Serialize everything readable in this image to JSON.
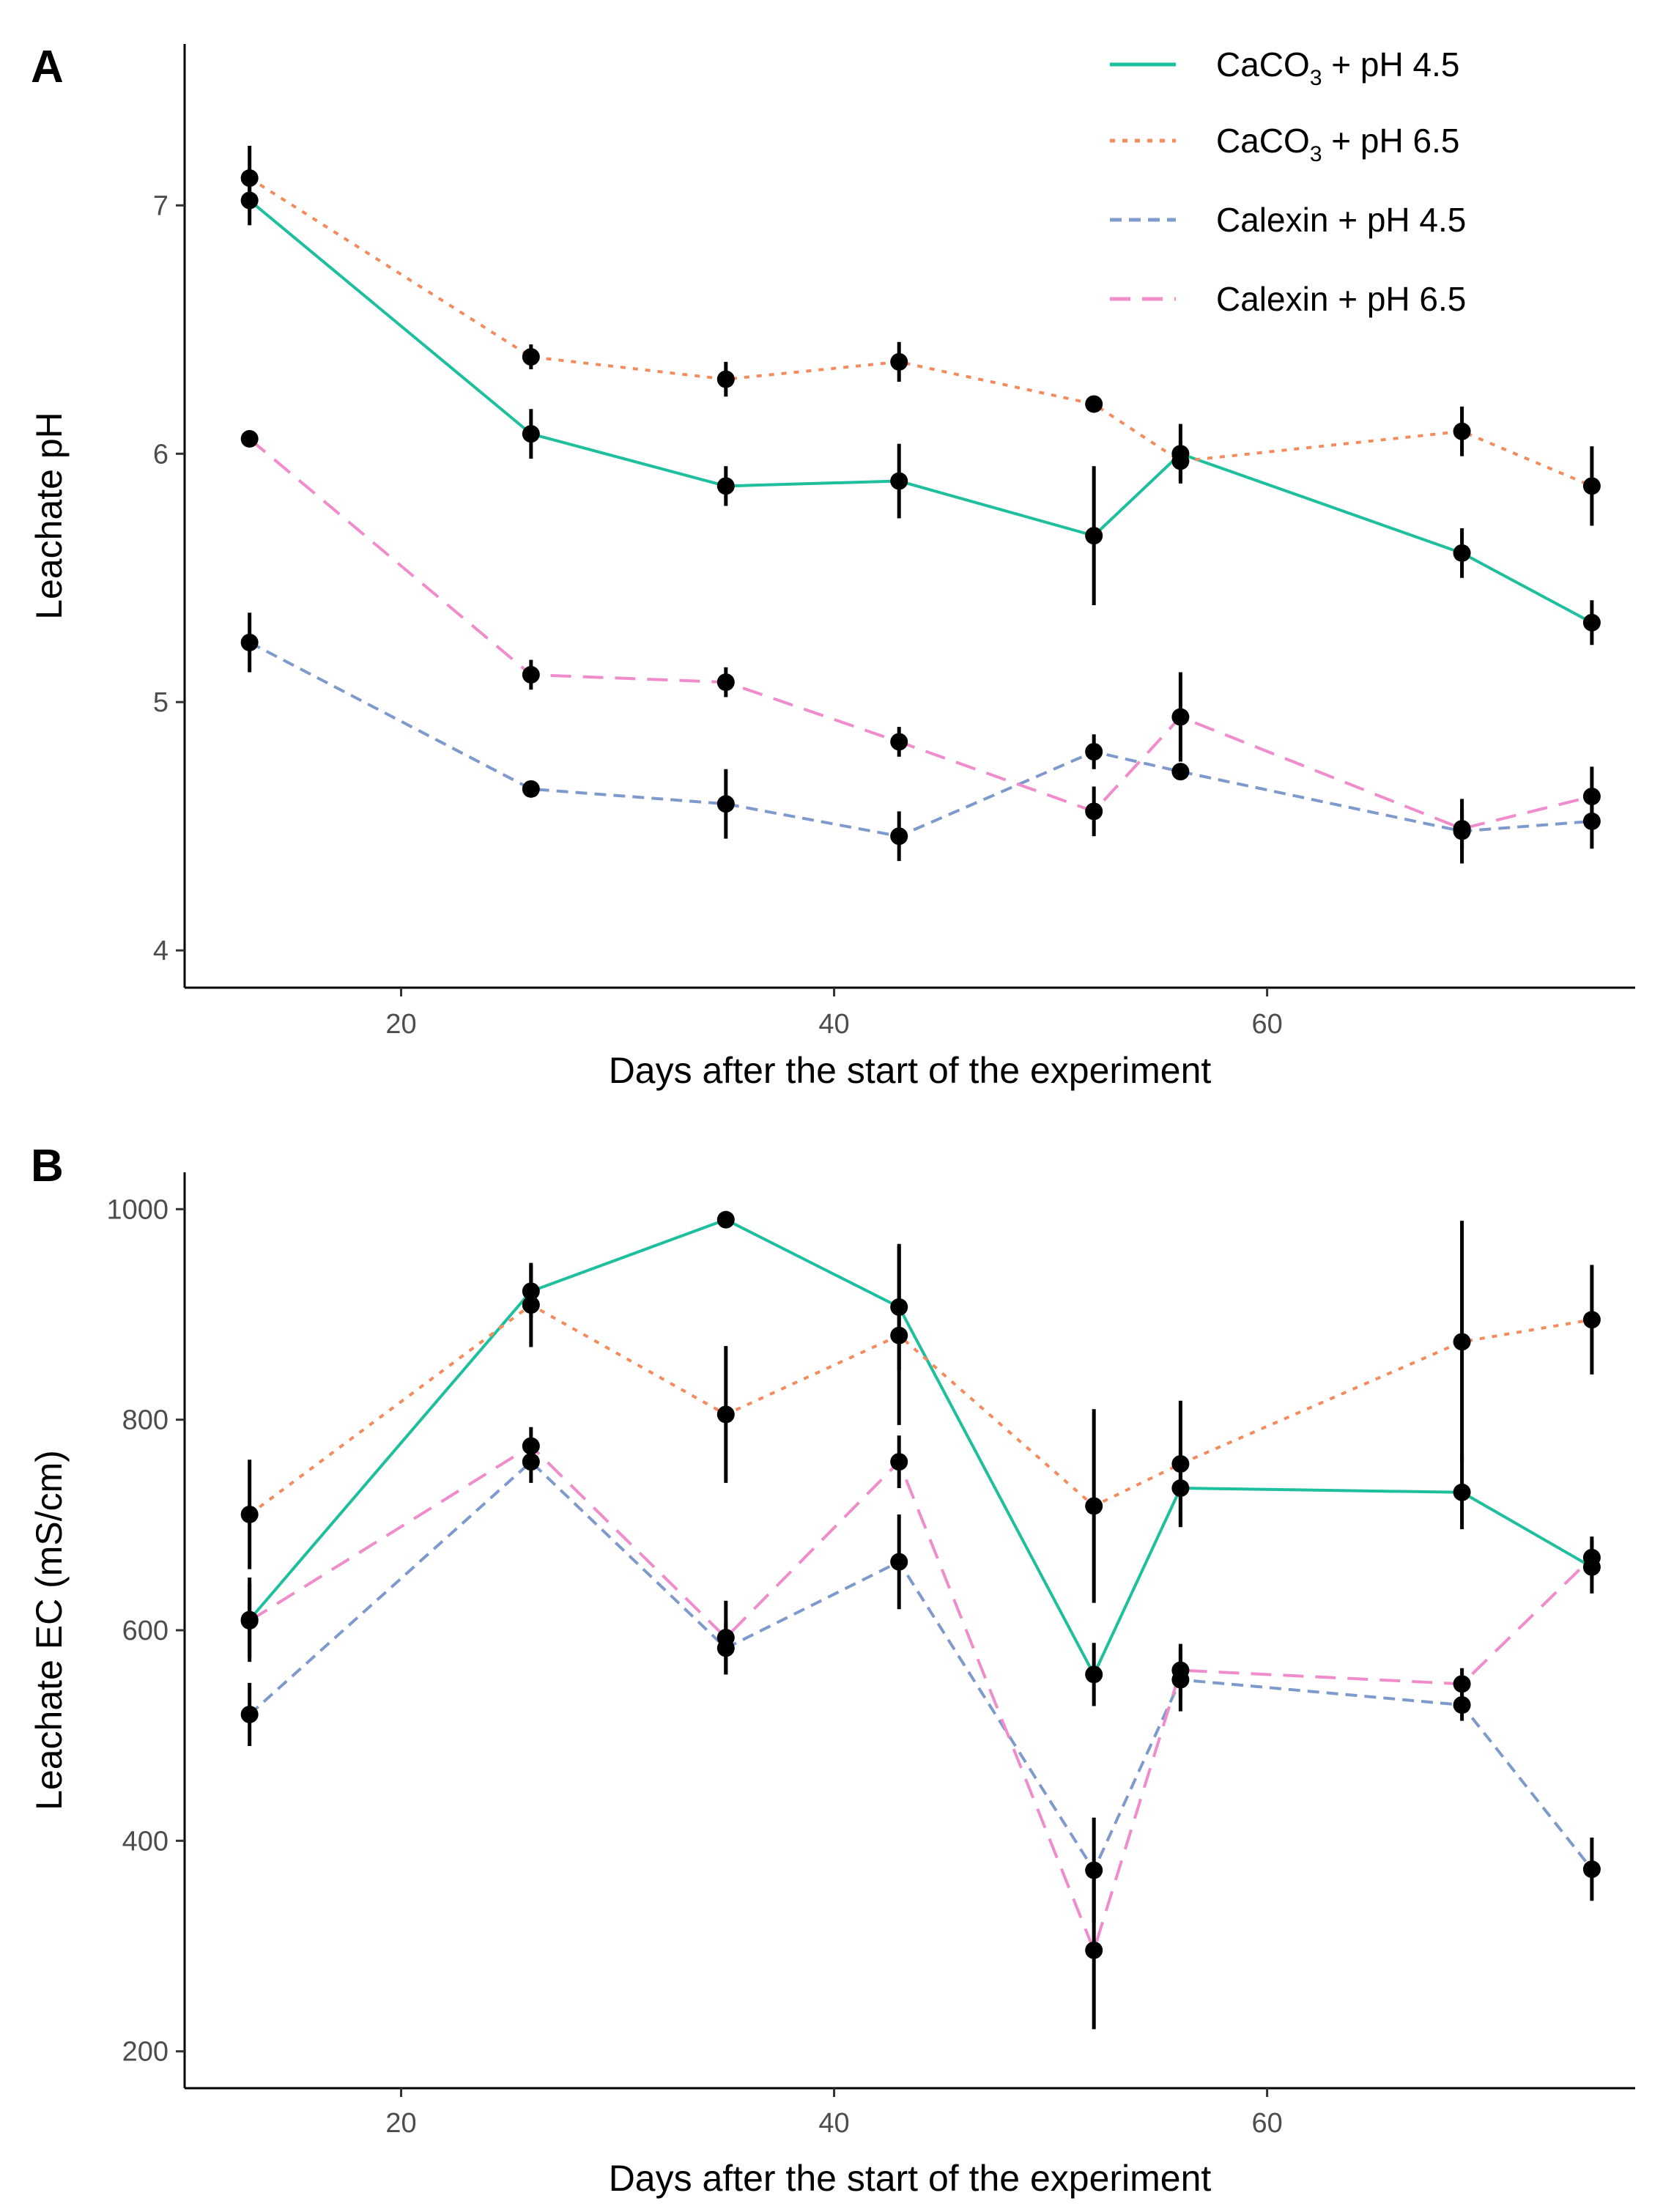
{
  "chart_data": [
    {
      "type": "line",
      "panel_label": "A",
      "title": "",
      "xlabel": "Days after the start of the experiment",
      "ylabel": "Leachate pH",
      "xlim": [
        10,
        77
      ],
      "ylim": [
        3.85,
        7.65
      ],
      "xticks": [
        20,
        40,
        60
      ],
      "xtick_labels": [
        "20",
        "40",
        "60"
      ],
      "yticks": [
        4,
        5,
        6,
        7
      ],
      "ytick_labels": [
        "4",
        "5",
        "6",
        "7"
      ],
      "x": [
        13,
        26,
        35,
        43,
        52,
        56,
        69,
        75
      ],
      "legend_position": "top-right",
      "series": [
        {
          "name": "CaCO3 + pH 4.5",
          "label_prefix": "CaCO",
          "label_sub": "3",
          "label_suffix": " + pH 4.5",
          "color": "#1dbf9c",
          "dash": "solid",
          "values": [
            7.02,
            6.08,
            5.87,
            5.89,
            5.67,
            6.0,
            5.6,
            5.32
          ],
          "errors": [
            0.1,
            0.1,
            0.08,
            0.15,
            0.28,
            0.12,
            0.1,
            0.09
          ]
        },
        {
          "name": "CaCO3 + pH 6.5",
          "label_prefix": "CaCO",
          "label_sub": "3",
          "label_suffix": " + pH 6.5",
          "color": "#f58a5c",
          "dash": "dotted",
          "values": [
            7.11,
            6.39,
            6.3,
            6.37,
            6.2,
            5.97,
            6.09,
            5.87
          ],
          "errors": [
            0.13,
            0.05,
            0.07,
            0.08,
            0.02,
            0.08,
            0.1,
            0.16
          ]
        },
        {
          "name": "Calexin + pH 4.5",
          "label": "Calexin + pH 4.5",
          "color": "#7e99cc",
          "dash": "dashed",
          "values": [
            5.24,
            4.65,
            4.59,
            4.46,
            4.8,
            4.72,
            4.48,
            4.52
          ],
          "errors": [
            0.12,
            0.03,
            0.14,
            0.1,
            0.07,
            0.03,
            0.13,
            0.11
          ]
        },
        {
          "name": "Calexin + pH 6.5",
          "label": "Calexin + pH 6.5",
          "color": "#f08ccb",
          "dash": "longdash",
          "values": [
            6.06,
            5.11,
            5.08,
            4.84,
            4.56,
            4.94,
            4.49,
            4.62
          ],
          "errors": [
            0.02,
            0.06,
            0.06,
            0.06,
            0.1,
            0.18,
            0.08,
            0.12
          ]
        }
      ]
    },
    {
      "type": "line",
      "panel_label": "B",
      "title": "",
      "xlabel": "Days after the start of the experiment",
      "ylabel": "Leachate EC (mS/cm)",
      "xlim": [
        10,
        77
      ],
      "ylim": [
        165,
        1035
      ],
      "xticks": [
        20,
        40,
        60
      ],
      "xtick_labels": [
        "20",
        "40",
        "60"
      ],
      "yticks": [
        200,
        400,
        600,
        800,
        1000
      ],
      "ytick_labels": [
        "200",
        "400",
        "600",
        "800",
        "1000"
      ],
      "x": [
        13,
        26,
        35,
        43,
        52,
        56,
        69,
        75
      ],
      "series": [
        {
          "name": "CaCO3 + pH 4.5",
          "color": "#1dbf9c",
          "dash": "solid",
          "values": [
            610,
            922,
            990,
            907,
            558,
            735,
            731,
            660
          ],
          "errors": [
            40,
            25,
            3,
            60,
            30,
            35,
            35,
            25
          ]
        },
        {
          "name": "CaCO3 + pH 6.5",
          "color": "#f58a5c",
          "dash": "dotted",
          "values": [
            710,
            909,
            805,
            880,
            718,
            758,
            874,
            895
          ],
          "errors": [
            52,
            40,
            65,
            85,
            92,
            60,
            115,
            52
          ]
        },
        {
          "name": "Calexin + pH 4.5",
          "color": "#7e99cc",
          "dash": "dashed",
          "values": [
            520,
            760,
            583,
            665,
            372,
            553,
            529,
            373
          ],
          "errors": [
            30,
            20,
            25,
            45,
            50,
            30,
            15,
            30
          ]
        },
        {
          "name": "Calexin + pH 6.5",
          "color": "#f08ccb",
          "dash": "longdash",
          "values": [
            609,
            775,
            593,
            760,
            296,
            562,
            549,
            669
          ],
          "errors": [
            35,
            18,
            35,
            25,
            75,
            25,
            15,
            20
          ]
        }
      ]
    }
  ]
}
